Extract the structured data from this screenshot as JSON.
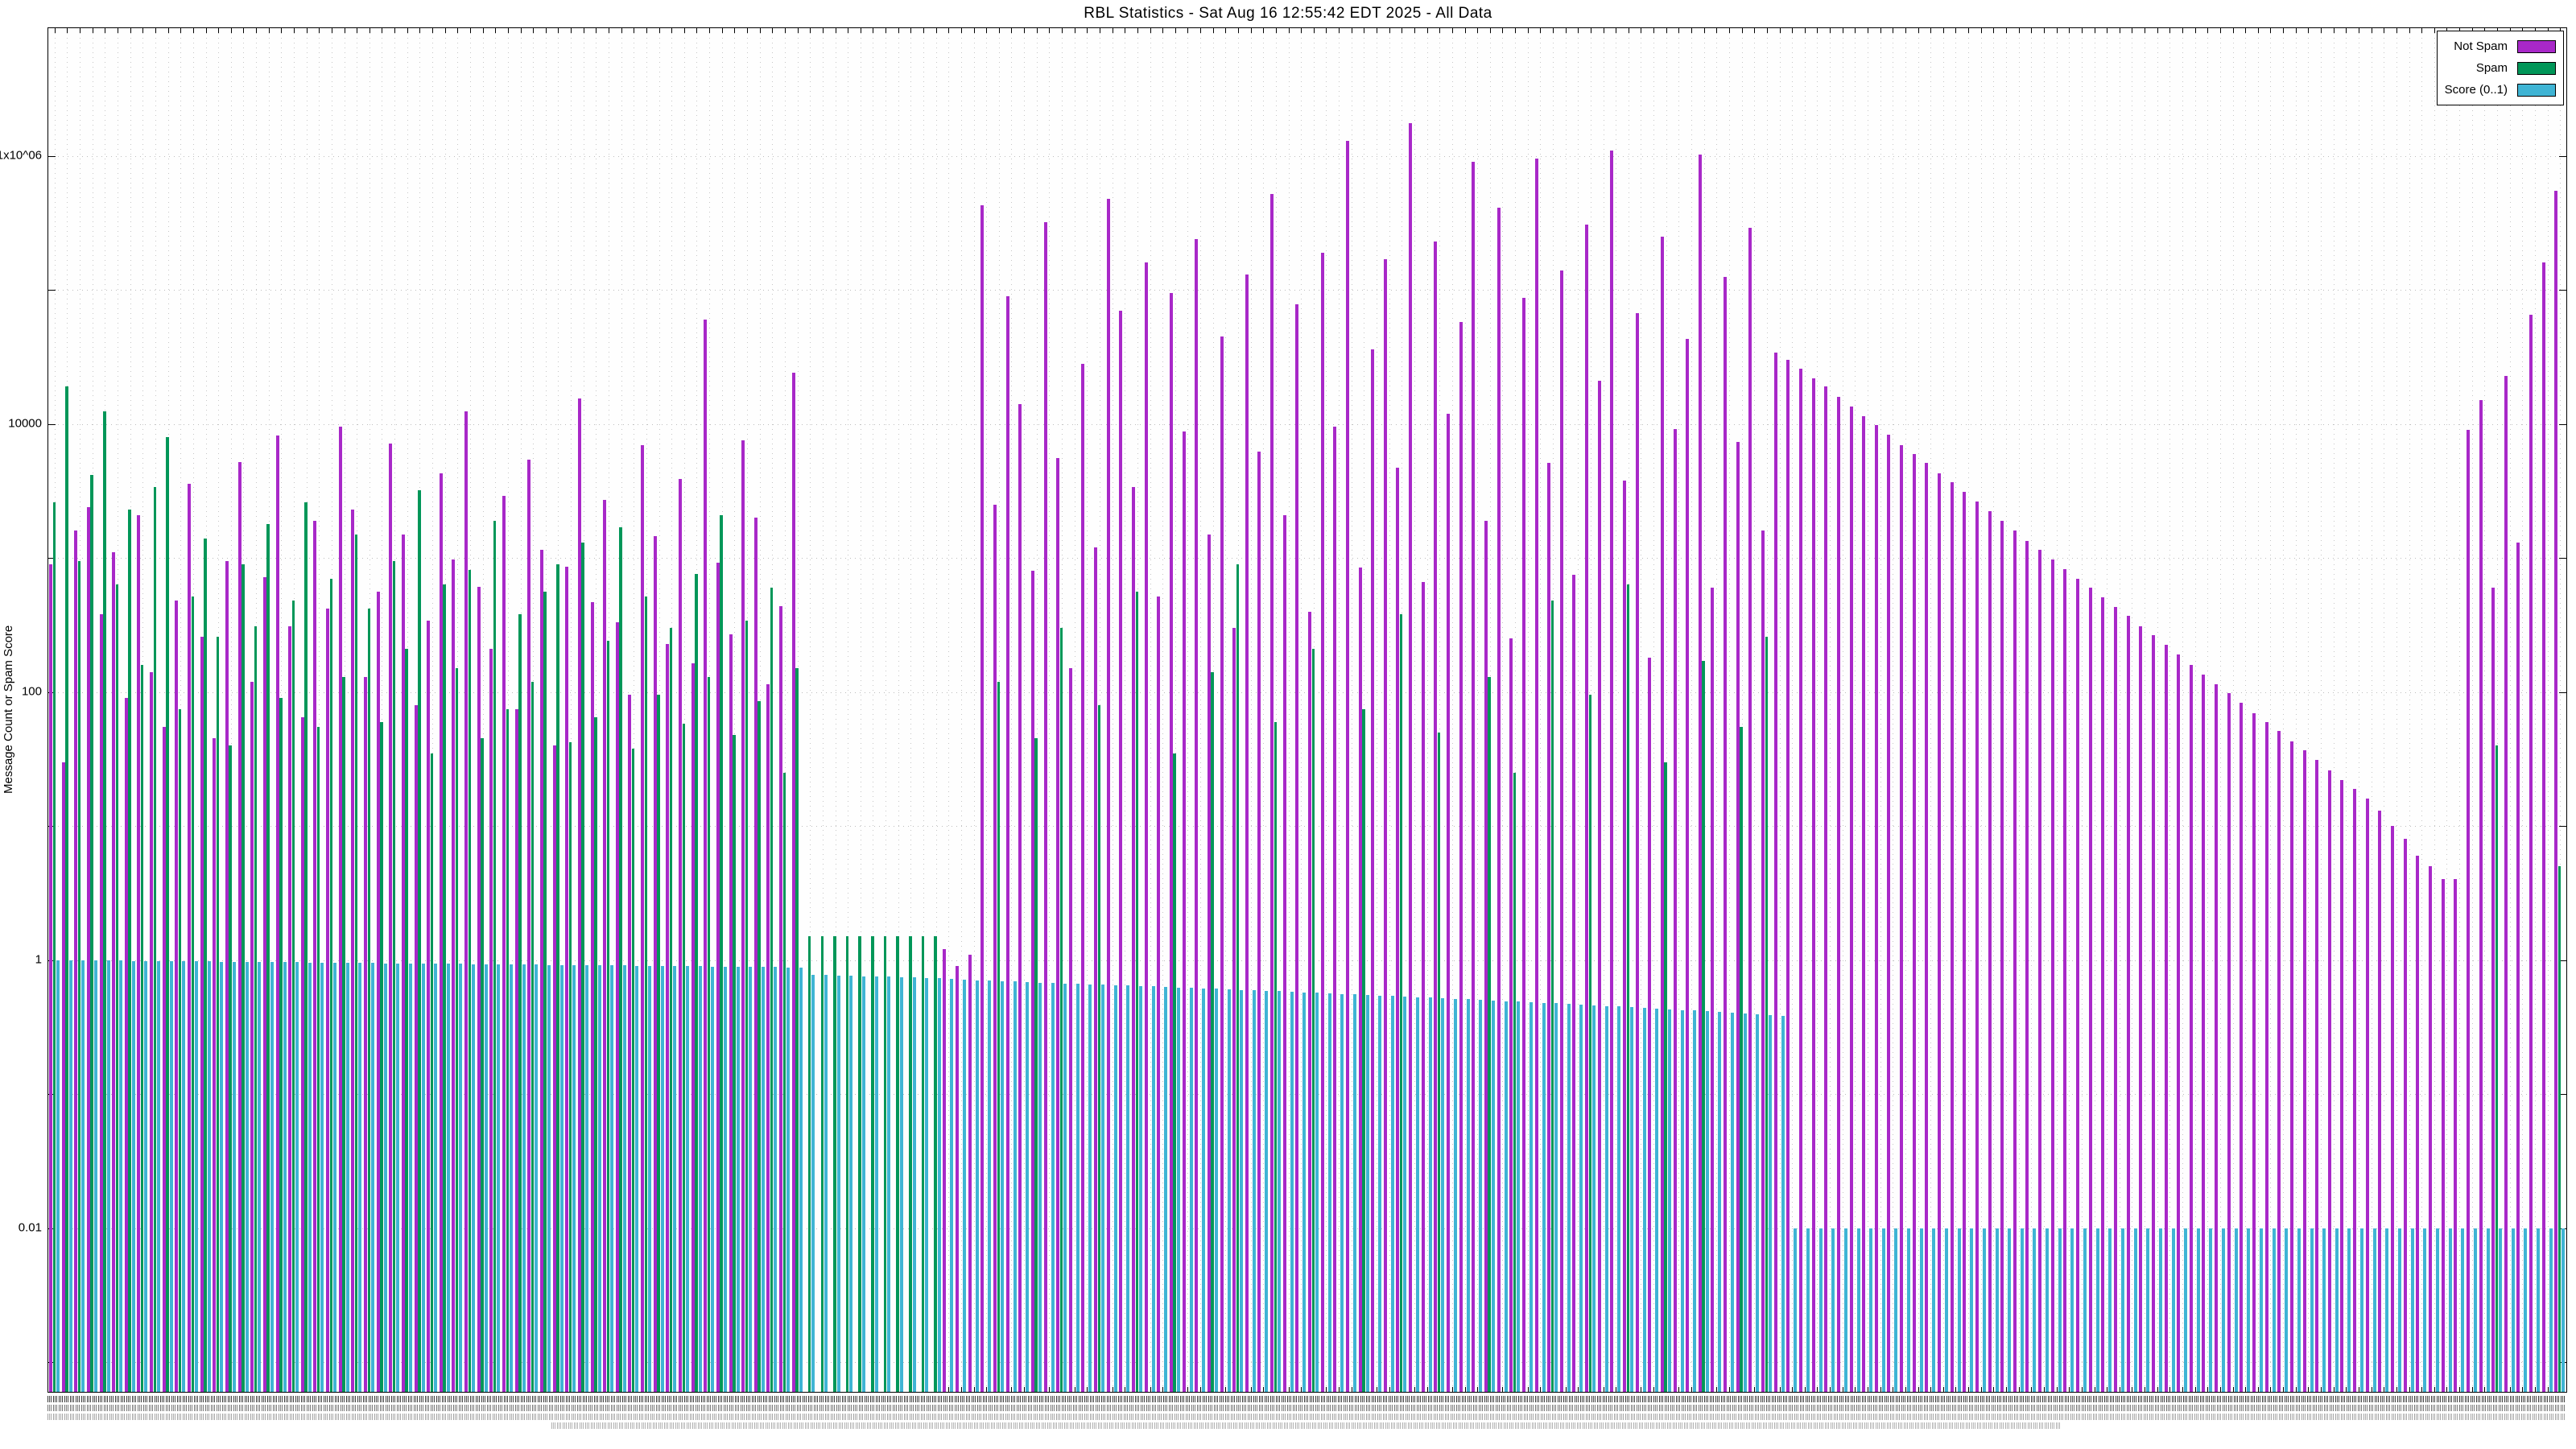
{
  "chart_data": {
    "type": "bar",
    "title": "RBL Statistics - Sat Aug 16 12:55:42 EDT 2025 - All Data",
    "ylabel": "Message Count or Spam Score",
    "xlabel": "",
    "y_scale": "log",
    "ylim": [
      0.0006,
      9000000
    ],
    "grid": true,
    "legend_position": "top-right",
    "x_count": 200,
    "y_ticks": [
      {
        "label": "1x10^06",
        "value": 1000000
      },
      {
        "label": "10000",
        "value": 10000
      },
      {
        "label": "100",
        "value": 100
      },
      {
        "label": "1",
        "value": 1
      },
      {
        "label": "0.01",
        "value": 0.01
      }
    ],
    "series": [
      {
        "name": "Not Spam",
        "color": "#a828c8",
        "values": [
          900,
          30,
          1600,
          2400,
          380,
          1100,
          90,
          2100,
          140,
          55,
          480,
          3600,
          260,
          45,
          950,
          5200,
          120,
          720,
          8200,
          310,
          65,
          1900,
          420,
          9500,
          2300,
          130,
          560,
          7200,
          1500,
          80,
          340,
          4300,
          980,
          12500,
          610,
          210,
          2900,
          75,
          5400,
          1150,
          40,
          860,
          15500,
          470,
          2700,
          330,
          95,
          7000,
          1450,
          230,
          3900,
          165,
          60000,
          920,
          270,
          7600,
          2000,
          115,
          440,
          24000,
          0,
          0,
          0,
          0,
          0,
          0,
          0,
          0,
          0,
          0,
          0,
          1.2,
          0.9,
          1.1,
          430000,
          2500,
          90000,
          14000,
          800,
          320000,
          5600,
          150,
          28000,
          1200,
          480000,
          70000,
          3400,
          160000,
          520,
          95000,
          8800,
          240000,
          1500,
          45000,
          300,
          130000,
          6200,
          520000,
          2100,
          78000,
          400,
          190000,
          9500,
          1300000,
          850,
          36000,
          170000,
          4700,
          1760000,
          660,
          230000,
          12000,
          58000,
          900000,
          1900,
          410000,
          250,
          88000,
          960000,
          5100,
          140000,
          750,
          310000,
          21000,
          1100000,
          3800,
          67000,
          180,
          250000,
          9200,
          43000,
          1020000,
          600,
          125000,
          7400,
          290000,
          1600,
          34000,
          30000,
          26000,
          22000,
          19000,
          16000,
          13500,
          11500,
          9800,
          8300,
          7000,
          6000,
          5100,
          4300,
          3700,
          3100,
          2650,
          2250,
          1900,
          1600,
          1350,
          1150,
          980,
          830,
          700,
          600,
          510,
          430,
          370,
          310,
          265,
          225,
          190,
          160,
          135,
          115,
          98,
          83,
          70,
          60,
          51,
          43,
          37,
          31,
          26,
          22,
          19,
          16,
          13,
          10,
          8,
          6,
          5,
          4,
          4,
          9000,
          15000,
          600,
          23000,
          1300,
          65000,
          160000,
          550000
        ]
      },
      {
        "name": "Spam",
        "color": "#009658",
        "values": [
          2600,
          19000,
          950,
          4200,
          12500,
          640,
          2300,
          160,
          3400,
          8000,
          75,
          520,
          1400,
          260,
          40,
          900,
          310,
          1800,
          90,
          480,
          2600,
          55,
          700,
          130,
          1500,
          420,
          60,
          950,
          210,
          3200,
          35,
          640,
          150,
          820,
          45,
          1900,
          75,
          380,
          120,
          560,
          900,
          42,
          1300,
          65,
          240,
          1700,
          38,
          520,
          95,
          300,
          58,
          760,
          130,
          2100,
          48,
          340,
          85,
          600,
          25,
          150,
          1.5,
          1.5,
          1.5,
          1.5,
          1.5,
          1.5,
          1.5,
          1.5,
          1.5,
          1.5,
          1.5,
          0,
          0,
          0,
          0,
          120,
          0,
          0,
          45,
          0,
          300,
          0,
          0,
          80,
          0,
          0,
          560,
          0,
          0,
          35,
          0,
          0,
          140,
          0,
          900,
          0,
          0,
          60,
          0,
          0,
          210,
          0,
          0,
          0,
          75,
          0,
          0,
          380,
          0,
          0,
          50,
          0,
          0,
          0,
          130,
          0,
          25,
          0,
          0,
          480,
          0,
          0,
          95,
          0,
          0,
          640,
          0,
          0,
          30,
          0,
          0,
          170,
          0,
          0,
          55,
          0,
          260,
          0,
          0,
          0,
          0,
          0,
          0,
          0,
          0,
          0,
          0,
          0,
          0,
          0,
          0,
          0,
          0,
          0,
          0,
          0,
          0,
          0,
          0,
          0,
          0,
          0,
          0,
          0,
          0,
          0,
          0,
          0,
          0,
          0,
          0,
          0,
          0,
          0,
          0,
          0,
          0,
          0,
          0,
          0,
          0,
          0,
          0,
          0,
          0,
          0,
          0,
          0,
          0,
          0,
          0,
          0,
          0,
          0,
          40,
          0,
          0,
          0,
          0,
          5
        ]
      },
      {
        "name": "Score (0..1)",
        "color": "#3fb4d4",
        "values": [
          1,
          0.998,
          0.996,
          0.994,
          0.992,
          0.99,
          0.988,
          0.986,
          0.984,
          0.982,
          0.98,
          0.978,
          0.976,
          0.974,
          0.972,
          0.97,
          0.968,
          0.966,
          0.964,
          0.962,
          0.96,
          0.958,
          0.956,
          0.954,
          0.952,
          0.95,
          0.948,
          0.946,
          0.944,
          0.942,
          0.94,
          0.938,
          0.936,
          0.934,
          0.932,
          0.93,
          0.928,
          0.926,
          0.924,
          0.922,
          0.92,
          0.918,
          0.916,
          0.914,
          0.912,
          0.91,
          0.908,
          0.906,
          0.904,
          0.902,
          0.9,
          0.898,
          0.896,
          0.894,
          0.892,
          0.89,
          0.888,
          0.886,
          0.884,
          0.882,
          0.78,
          0.775,
          0.77,
          0.765,
          0.76,
          0.755,
          0.75,
          0.745,
          0.74,
          0.735,
          0.73,
          0.72,
          0.71,
          0.7,
          0.7,
          0.695,
          0.69,
          0.685,
          0.68,
          0.675,
          0.67,
          0.665,
          0.66,
          0.655,
          0.65,
          0.645,
          0.64,
          0.635,
          0.63,
          0.625,
          0.62,
          0.615,
          0.61,
          0.605,
          0.6,
          0.595,
          0.59,
          0.585,
          0.58,
          0.575,
          0.57,
          0.565,
          0.56,
          0.555,
          0.55,
          0.545,
          0.54,
          0.535,
          0.53,
          0.525,
          0.52,
          0.515,
          0.51,
          0.505,
          0.5,
          0.495,
          0.49,
          0.485,
          0.48,
          0.475,
          0.47,
          0.465,
          0.46,
          0.455,
          0.45,
          0.445,
          0.44,
          0.435,
          0.43,
          0.425,
          0.42,
          0.415,
          0.41,
          0.405,
          0.4,
          0.395,
          0.39,
          0.385,
          0.01,
          0.01,
          0.01,
          0.01,
          0.01,
          0.01,
          0.01,
          0.01,
          0.01,
          0.01,
          0.01,
          0.01,
          0.01,
          0.01,
          0.01,
          0.01,
          0.01,
          0.01,
          0.01,
          0.01,
          0.01,
          0.01,
          0.01,
          0.01,
          0.01,
          0.01,
          0.01,
          0.01,
          0.01,
          0.01,
          0.01,
          0.01,
          0.01,
          0.01,
          0.01,
          0.01,
          0.01,
          0.01,
          0.01,
          0.01,
          0.01,
          0.01,
          0.01,
          0.01,
          0.01,
          0.01,
          0.01,
          0.01,
          0.01,
          0.01,
          0.01,
          0.01,
          0.01,
          0.01,
          0.01,
          0.01,
          0.01,
          0.01,
          0.01,
          0.01,
          0.01,
          0.01
        ]
      }
    ]
  }
}
